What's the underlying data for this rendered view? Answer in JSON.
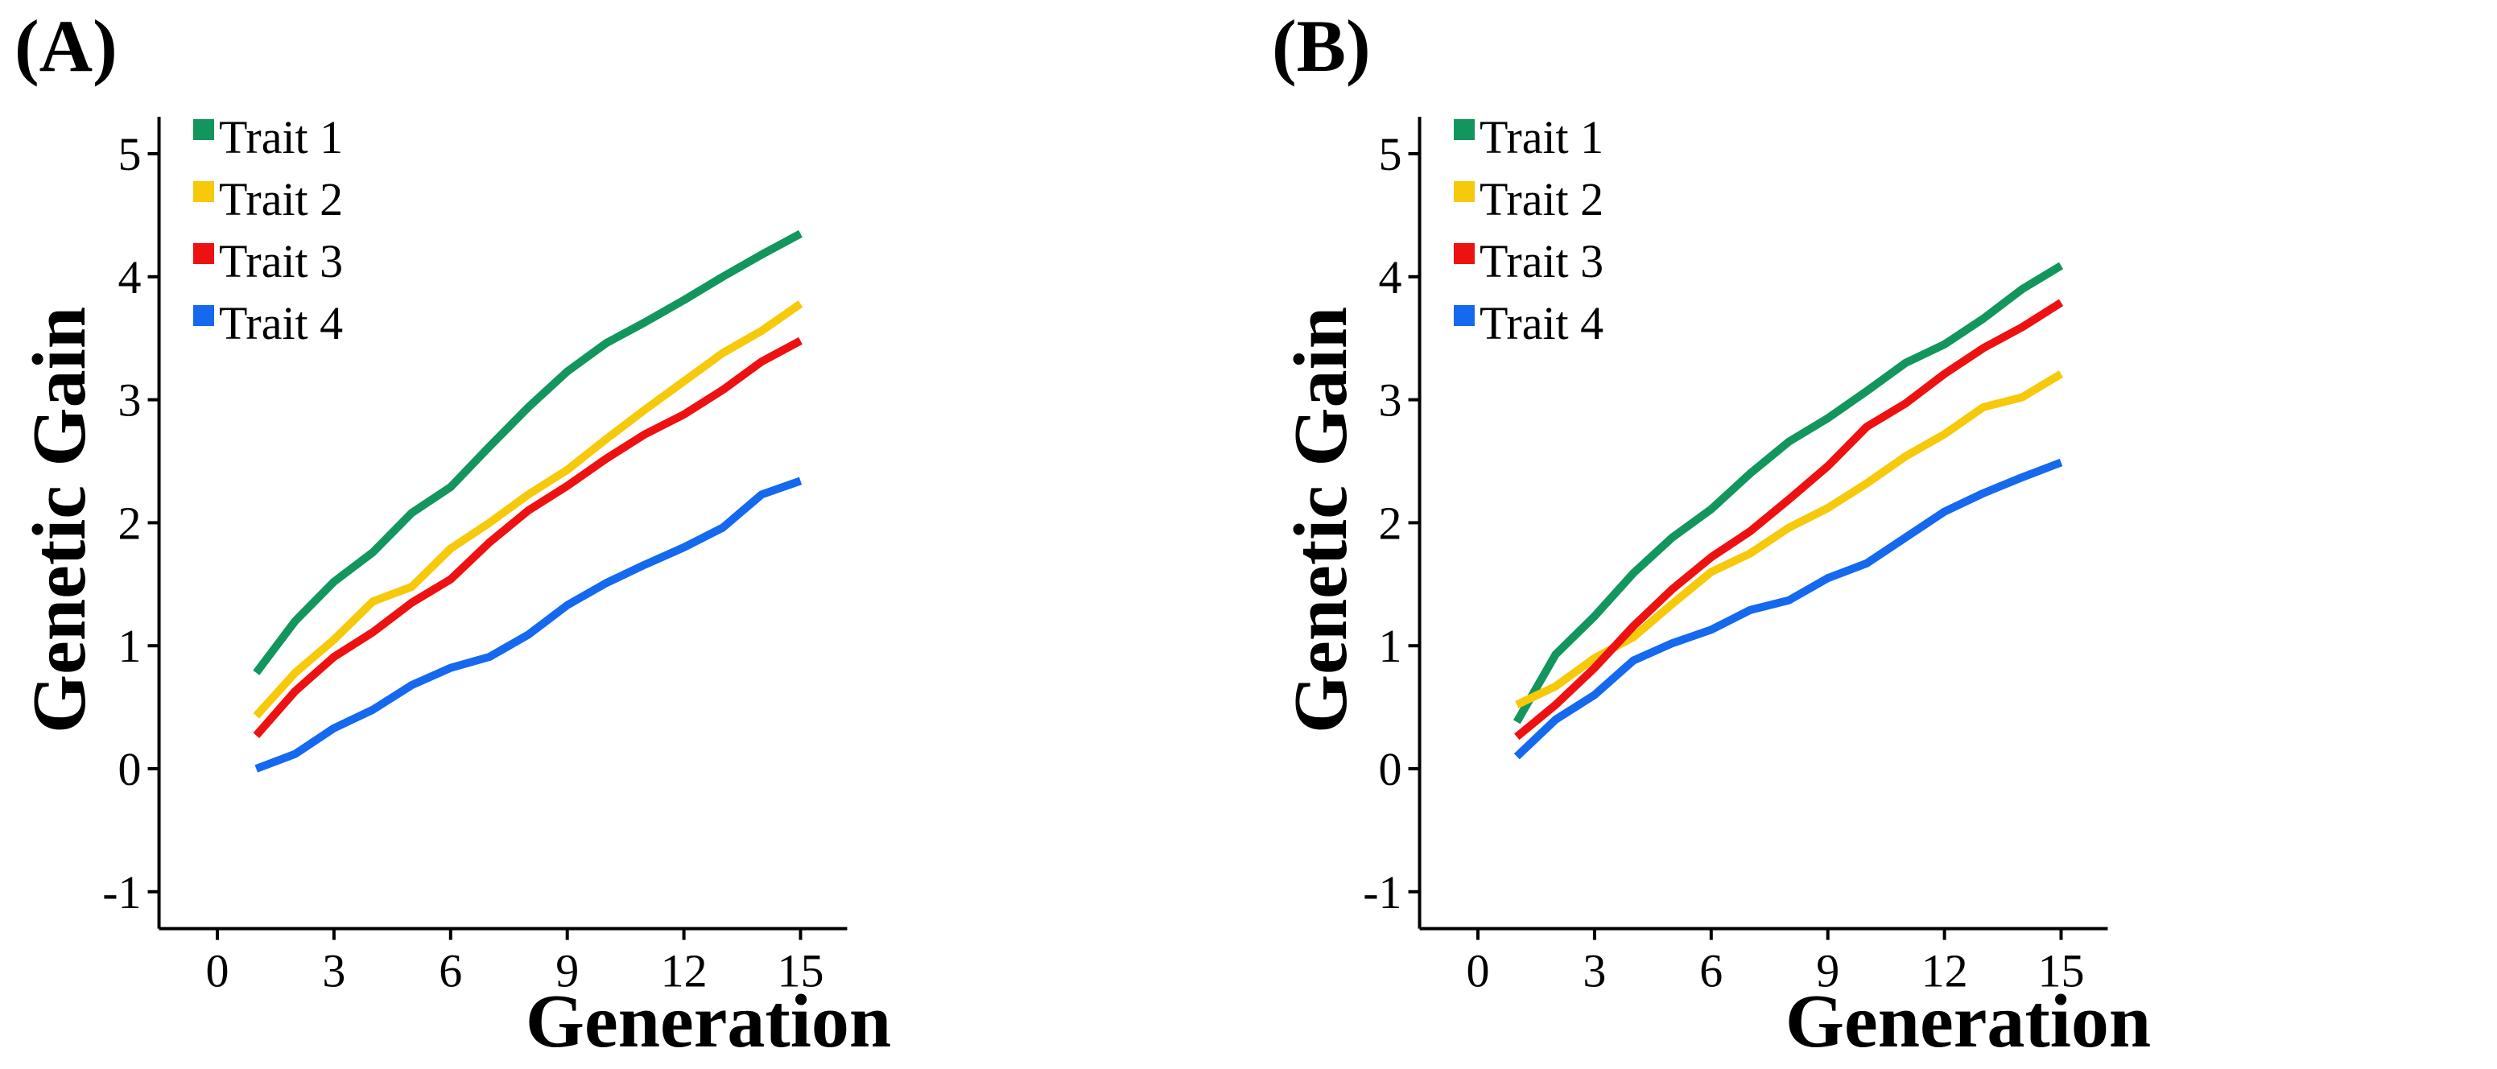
{
  "figure": {
    "background": "#ffffff"
  },
  "chart_data": [
    {
      "type": "line",
      "panel_label": "(A)",
      "xlabel": "Generation",
      "ylabel": "Genetic Gain",
      "xlim": [
        -1.5,
        16.2
      ],
      "ylim": [
        -1.3,
        5.3
      ],
      "xticks": [
        0,
        3,
        6,
        9,
        12,
        15
      ],
      "yticks": [
        -1,
        0,
        1,
        2,
        3,
        4,
        5
      ],
      "grid": false,
      "legend_position": "top-left",
      "x": [
        1,
        2,
        3,
        4,
        5,
        6,
        7,
        8,
        9,
        10,
        11,
        12,
        13,
        14,
        15
      ],
      "series": [
        {
          "name": "Trait 1",
          "color": "#13965e",
          "values": [
            0.78,
            1.2,
            1.52,
            1.76,
            2.08,
            2.29,
            2.62,
            2.94,
            3.23,
            3.46,
            3.63,
            3.81,
            4.0,
            4.18,
            4.35
          ]
        },
        {
          "name": "Trait 2",
          "color": "#f7c90b",
          "values": [
            0.43,
            0.78,
            1.05,
            1.36,
            1.48,
            1.79,
            2.0,
            2.23,
            2.43,
            2.68,
            2.92,
            3.15,
            3.38,
            3.56,
            3.78
          ]
        },
        {
          "name": "Trait 3",
          "color": "#ee1111",
          "values": [
            0.27,
            0.63,
            0.91,
            1.11,
            1.35,
            1.54,
            1.84,
            2.1,
            2.3,
            2.52,
            2.72,
            2.88,
            3.08,
            3.31,
            3.48
          ]
        },
        {
          "name": "Trait 4",
          "color": "#1469ee",
          "values": [
            0.0,
            0.12,
            0.33,
            0.48,
            0.68,
            0.82,
            0.91,
            1.09,
            1.33,
            1.51,
            1.66,
            1.8,
            1.96,
            2.23,
            2.34
          ]
        }
      ]
    },
    {
      "type": "line",
      "panel_label": "(B)",
      "xlabel": "Generation",
      "ylabel": "Genetic Gain",
      "xlim": [
        -1.5,
        16.2
      ],
      "ylim": [
        -1.3,
        5.3
      ],
      "xticks": [
        0,
        3,
        6,
        9,
        12,
        15
      ],
      "yticks": [
        -1,
        0,
        1,
        2,
        3,
        4,
        5
      ],
      "grid": false,
      "legend_position": "top-left",
      "x": [
        1,
        2,
        3,
        4,
        5,
        6,
        7,
        8,
        9,
        10,
        11,
        12,
        13,
        14,
        15
      ],
      "series": [
        {
          "name": "Trait 1",
          "color": "#13965e",
          "values": [
            0.38,
            0.93,
            1.24,
            1.59,
            1.88,
            2.11,
            2.4,
            2.66,
            2.85,
            3.07,
            3.3,
            3.45,
            3.66,
            3.9,
            4.09
          ]
        },
        {
          "name": "Trait 2",
          "color": "#f7c90b",
          "values": [
            0.52,
            0.67,
            0.9,
            1.07,
            1.34,
            1.6,
            1.75,
            1.96,
            2.12,
            2.32,
            2.54,
            2.72,
            2.94,
            3.02,
            3.21
          ]
        },
        {
          "name": "Trait 3",
          "color": "#ee1111",
          "values": [
            0.26,
            0.52,
            0.82,
            1.16,
            1.46,
            1.72,
            1.93,
            2.19,
            2.46,
            2.78,
            2.97,
            3.21,
            3.42,
            3.59,
            3.79
          ]
        },
        {
          "name": "Trait 4",
          "color": "#1469ee",
          "values": [
            0.1,
            0.4,
            0.6,
            0.88,
            1.02,
            1.13,
            1.29,
            1.37,
            1.55,
            1.67,
            1.88,
            2.09,
            2.24,
            2.37,
            2.49
          ]
        }
      ]
    }
  ]
}
